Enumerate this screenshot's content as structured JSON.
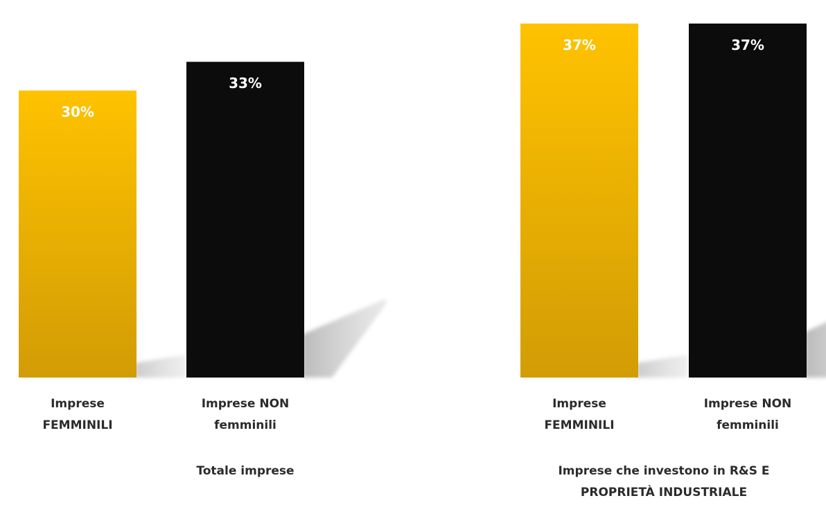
{
  "chart_data": {
    "type": "bar",
    "groups": [
      {
        "label": [
          "Totale imprese"
        ],
        "categories": [
          {
            "label": [
              "Imprese",
              "FEMMINILI"
            ],
            "value": 30,
            "value_label": "30%",
            "color": "#f2b100"
          },
          {
            "label": [
              "Imprese NON",
              "femminili"
            ],
            "value": 33,
            "value_label": "33%",
            "color": "#0c0c0c"
          }
        ]
      },
      {
        "label": [
          "Imprese che investono in R&S E",
          "PROPRIETÀ INDUSTRIALE"
        ],
        "categories": [
          {
            "label": [
              "Imprese",
              "FEMMINILI"
            ],
            "value": 37,
            "value_label": "37%",
            "color": "#f2b100"
          },
          {
            "label": [
              "Imprese NON",
              "femminili"
            ],
            "value": 37,
            "value_label": "37%",
            "color": "#0c0c0c"
          }
        ]
      }
    ],
    "ylim": [
      0,
      37
    ],
    "grid": false,
    "legend": "none",
    "colors": {
      "femminili": "#f2b100",
      "non_femminili": "#0c0c0c"
    }
  }
}
